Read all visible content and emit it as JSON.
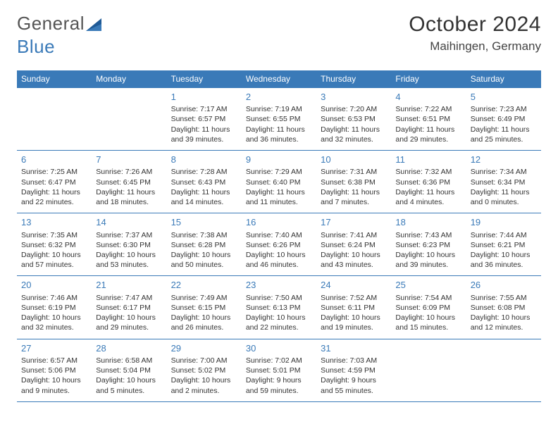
{
  "logo": {
    "text1": "General",
    "text2": "Blue"
  },
  "title": "October 2024",
  "location": "Maihingen, Germany",
  "colors": {
    "accent": "#3a7ab8",
    "text": "#333333",
    "bg": "#ffffff",
    "logo_gray": "#555555"
  },
  "dayHeaders": [
    "Sunday",
    "Monday",
    "Tuesday",
    "Wednesday",
    "Thursday",
    "Friday",
    "Saturday"
  ],
  "weeks": [
    [
      null,
      null,
      {
        "n": "1",
        "sr": "Sunrise: 7:17 AM",
        "ss": "Sunset: 6:57 PM",
        "dl": "Daylight: 11 hours and 39 minutes."
      },
      {
        "n": "2",
        "sr": "Sunrise: 7:19 AM",
        "ss": "Sunset: 6:55 PM",
        "dl": "Daylight: 11 hours and 36 minutes."
      },
      {
        "n": "3",
        "sr": "Sunrise: 7:20 AM",
        "ss": "Sunset: 6:53 PM",
        "dl": "Daylight: 11 hours and 32 minutes."
      },
      {
        "n": "4",
        "sr": "Sunrise: 7:22 AM",
        "ss": "Sunset: 6:51 PM",
        "dl": "Daylight: 11 hours and 29 minutes."
      },
      {
        "n": "5",
        "sr": "Sunrise: 7:23 AM",
        "ss": "Sunset: 6:49 PM",
        "dl": "Daylight: 11 hours and 25 minutes."
      }
    ],
    [
      {
        "n": "6",
        "sr": "Sunrise: 7:25 AM",
        "ss": "Sunset: 6:47 PM",
        "dl": "Daylight: 11 hours and 22 minutes."
      },
      {
        "n": "7",
        "sr": "Sunrise: 7:26 AM",
        "ss": "Sunset: 6:45 PM",
        "dl": "Daylight: 11 hours and 18 minutes."
      },
      {
        "n": "8",
        "sr": "Sunrise: 7:28 AM",
        "ss": "Sunset: 6:43 PM",
        "dl": "Daylight: 11 hours and 14 minutes."
      },
      {
        "n": "9",
        "sr": "Sunrise: 7:29 AM",
        "ss": "Sunset: 6:40 PM",
        "dl": "Daylight: 11 hours and 11 minutes."
      },
      {
        "n": "10",
        "sr": "Sunrise: 7:31 AM",
        "ss": "Sunset: 6:38 PM",
        "dl": "Daylight: 11 hours and 7 minutes."
      },
      {
        "n": "11",
        "sr": "Sunrise: 7:32 AM",
        "ss": "Sunset: 6:36 PM",
        "dl": "Daylight: 11 hours and 4 minutes."
      },
      {
        "n": "12",
        "sr": "Sunrise: 7:34 AM",
        "ss": "Sunset: 6:34 PM",
        "dl": "Daylight: 11 hours and 0 minutes."
      }
    ],
    [
      {
        "n": "13",
        "sr": "Sunrise: 7:35 AM",
        "ss": "Sunset: 6:32 PM",
        "dl": "Daylight: 10 hours and 57 minutes."
      },
      {
        "n": "14",
        "sr": "Sunrise: 7:37 AM",
        "ss": "Sunset: 6:30 PM",
        "dl": "Daylight: 10 hours and 53 minutes."
      },
      {
        "n": "15",
        "sr": "Sunrise: 7:38 AM",
        "ss": "Sunset: 6:28 PM",
        "dl": "Daylight: 10 hours and 50 minutes."
      },
      {
        "n": "16",
        "sr": "Sunrise: 7:40 AM",
        "ss": "Sunset: 6:26 PM",
        "dl": "Daylight: 10 hours and 46 minutes."
      },
      {
        "n": "17",
        "sr": "Sunrise: 7:41 AM",
        "ss": "Sunset: 6:24 PM",
        "dl": "Daylight: 10 hours and 43 minutes."
      },
      {
        "n": "18",
        "sr": "Sunrise: 7:43 AM",
        "ss": "Sunset: 6:23 PM",
        "dl": "Daylight: 10 hours and 39 minutes."
      },
      {
        "n": "19",
        "sr": "Sunrise: 7:44 AM",
        "ss": "Sunset: 6:21 PM",
        "dl": "Daylight: 10 hours and 36 minutes."
      }
    ],
    [
      {
        "n": "20",
        "sr": "Sunrise: 7:46 AM",
        "ss": "Sunset: 6:19 PM",
        "dl": "Daylight: 10 hours and 32 minutes."
      },
      {
        "n": "21",
        "sr": "Sunrise: 7:47 AM",
        "ss": "Sunset: 6:17 PM",
        "dl": "Daylight: 10 hours and 29 minutes."
      },
      {
        "n": "22",
        "sr": "Sunrise: 7:49 AM",
        "ss": "Sunset: 6:15 PM",
        "dl": "Daylight: 10 hours and 26 minutes."
      },
      {
        "n": "23",
        "sr": "Sunrise: 7:50 AM",
        "ss": "Sunset: 6:13 PM",
        "dl": "Daylight: 10 hours and 22 minutes."
      },
      {
        "n": "24",
        "sr": "Sunrise: 7:52 AM",
        "ss": "Sunset: 6:11 PM",
        "dl": "Daylight: 10 hours and 19 minutes."
      },
      {
        "n": "25",
        "sr": "Sunrise: 7:54 AM",
        "ss": "Sunset: 6:09 PM",
        "dl": "Daylight: 10 hours and 15 minutes."
      },
      {
        "n": "26",
        "sr": "Sunrise: 7:55 AM",
        "ss": "Sunset: 6:08 PM",
        "dl": "Daylight: 10 hours and 12 minutes."
      }
    ],
    [
      {
        "n": "27",
        "sr": "Sunrise: 6:57 AM",
        "ss": "Sunset: 5:06 PM",
        "dl": "Daylight: 10 hours and 9 minutes."
      },
      {
        "n": "28",
        "sr": "Sunrise: 6:58 AM",
        "ss": "Sunset: 5:04 PM",
        "dl": "Daylight: 10 hours and 5 minutes."
      },
      {
        "n": "29",
        "sr": "Sunrise: 7:00 AM",
        "ss": "Sunset: 5:02 PM",
        "dl": "Daylight: 10 hours and 2 minutes."
      },
      {
        "n": "30",
        "sr": "Sunrise: 7:02 AM",
        "ss": "Sunset: 5:01 PM",
        "dl": "Daylight: 9 hours and 59 minutes."
      },
      {
        "n": "31",
        "sr": "Sunrise: 7:03 AM",
        "ss": "Sunset: 4:59 PM",
        "dl": "Daylight: 9 hours and 55 minutes."
      },
      null,
      null
    ]
  ]
}
